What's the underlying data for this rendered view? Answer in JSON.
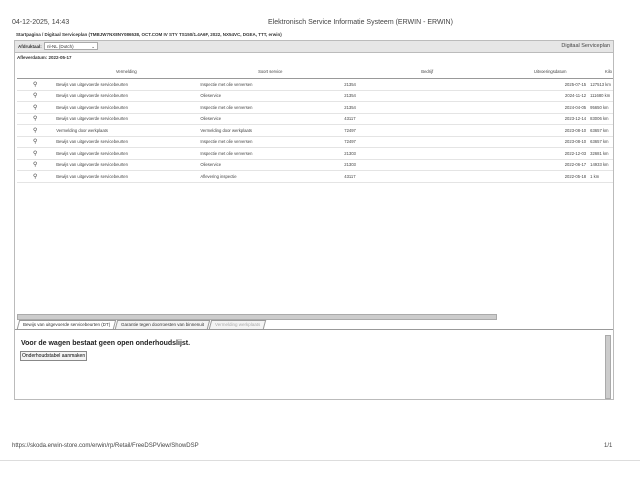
{
  "print_header": {
    "datetime": "04-12-2025, 14:43",
    "title": "Elektronisch Service Informatie Systeem (ERWIN - ERWIN)"
  },
  "breadcrumb": "Startpagina / Digitaal Serviceplan (TMBJW7NX8NY086538, OCT.COM IV STY TS150/1.4A6F, 2022, NX54VC, DGEA, TTT, erwin)",
  "toolbar": {
    "language_label": "Afdruktaal:",
    "language_value": "nl-NL (Dutch)",
    "panel_title": "Digitaal Serviceplan"
  },
  "delivery_date": "Afleverdatum: 2022-05-17",
  "table": {
    "columns": [
      "",
      "Vermelding",
      "Soort service",
      "Bedrijf",
      "Uitvoeringsdatum",
      "Kilo"
    ],
    "rows": [
      [
        "Bewijs van uitgevoerde servicebeurten",
        "Inspectie met olie verversen",
        "21354",
        "2025-07-15",
        "127513 km"
      ],
      [
        "Bewijs van uitgevoerde servicebeurten",
        "Olieservice",
        "21354",
        "2024-11-12",
        "111680 km"
      ],
      [
        "Bewijs van uitgevoerde servicebeurten",
        "Inspectie met olie verversen",
        "21354",
        "2024-04-05",
        "95650 km"
      ],
      [
        "Bewijs van uitgevoerde servicebeurten",
        "Olieservice",
        "43117",
        "2023-12-14",
        "83006 km"
      ],
      [
        "Vermelding door werkplaats",
        "Vermelding door werkplaats",
        "72497",
        "2023-08-10",
        "63657 km"
      ],
      [
        "Bewijs van uitgevoerde servicebeurten",
        "Inspectie met olie verversen",
        "72497",
        "2023-08-10",
        "63657 km"
      ],
      [
        "Bewijs van uitgevoerde servicebeurten",
        "Inspectie met olie verversen",
        "21303",
        "2022-12-03",
        "32681 km"
      ],
      [
        "Bewijs van uitgevoerde servicebeurten",
        "Olieservice",
        "21303",
        "2022-06-17",
        "14933 km"
      ],
      [
        "Bewijs van uitgevoerde servicebeurten",
        "Aflevering inspectie",
        "43117",
        "2022-05-18",
        "1 km"
      ]
    ]
  },
  "tabs": [
    "Bewijs van uitgevoerde servicebeurten (DT)",
    "Garantie tegen doorroesten van binnenuit",
    "Vermelding werkplaats"
  ],
  "lower": {
    "message": "Voor de wagen bestaat geen open onderhoudslijst.",
    "button": "Onderhoudstabel aanmaken"
  },
  "print_footer": {
    "url": "https://skoda.erwin-store.com/erwin/rp/Retail/FreeDSPView/ShowDSP",
    "page": "1/1"
  },
  "icons": {
    "row_icon": "magnifier-icon"
  },
  "colors": {
    "accent": "#1a5fa8"
  }
}
